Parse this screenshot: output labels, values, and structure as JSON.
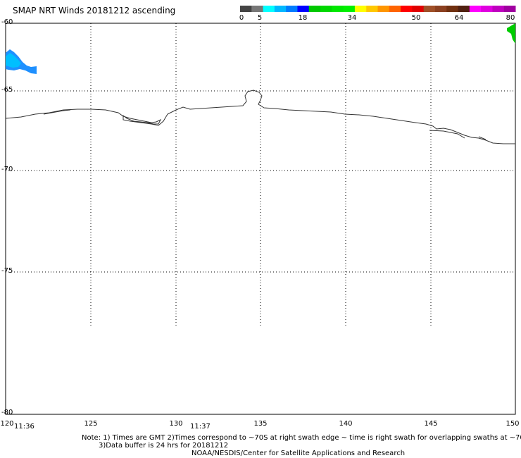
{
  "title": "SMAP NRT Winds 20181212 ascending",
  "colorbar": {
    "tick_labels": [
      "0",
      "5",
      "18",
      "34",
      "50",
      "64",
      "80"
    ],
    "colors": [
      "#444444",
      "#777777",
      "#00ffff",
      "#00b8ff",
      "#007cff",
      "#0000ff",
      "#00c800",
      "#00d800",
      "#00e800",
      "#00f000",
      "#ffff00",
      "#ffc800",
      "#ff9600",
      "#ff6400",
      "#ff0000",
      "#e00000",
      "#a05028",
      "#8b4020",
      "#703010",
      "#502010",
      "#ff00ff",
      "#e000e0",
      "#c000c0",
      "#a000a0"
    ]
  },
  "map": {
    "lat_labels": [
      "-60",
      "-65",
      "-70",
      "-75",
      "-80"
    ],
    "lon_labels": [
      "120",
      "125",
      "130",
      "135",
      "140",
      "145",
      "150"
    ],
    "time_labels": [
      "11:36",
      "11:37"
    ]
  },
  "notes": {
    "line1": "Note: 1) Times are GMT 2)Times correspond to ~70S at right swath edge ~ time is right swath for overlapping swaths at ~70S",
    "line2": "3)Data buffer is 24 hrs for 20181212",
    "line3": "NOAA/NESDIS/Center for Satellite Applications and Research"
  }
}
